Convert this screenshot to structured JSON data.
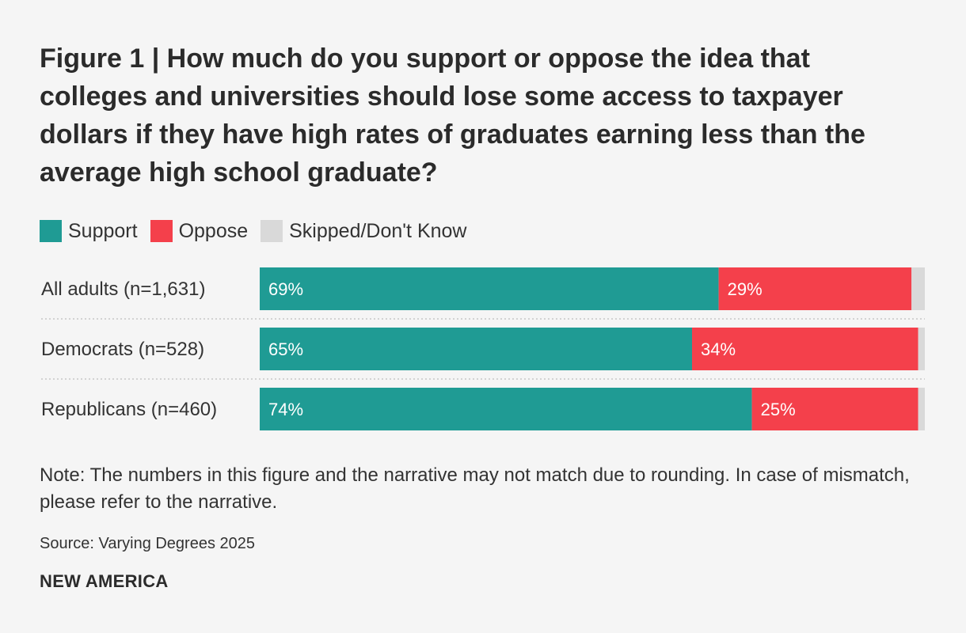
{
  "chart_data": {
    "type": "bar",
    "orientation": "horizontal",
    "stacked": true,
    "title": "Figure 1 | How much do you support or oppose the idea that colleges and universities should lose some access to taxpayer dollars if they have high rates of graduates earning less than the average high school graduate?",
    "categories": [
      "All adults (n=1,631)",
      "Democrats (n=528)",
      "Republicans (n=460)"
    ],
    "series": [
      {
        "name": "Support",
        "color": "#1f9b94",
        "values": [
          69,
          65,
          74
        ],
        "labels": [
          "69%",
          "65%",
          "74%"
        ]
      },
      {
        "name": "Oppose",
        "color": "#f4404b",
        "values": [
          29,
          34,
          25
        ],
        "labels": [
          "29%",
          "34%",
          "25%"
        ]
      },
      {
        "name": "Skipped/Don't Know",
        "color": "#d9d9d9",
        "values": [
          2,
          1,
          1
        ],
        "labels": [
          "",
          "",
          ""
        ]
      }
    ],
    "xlim": [
      0,
      100
    ],
    "legend": "top-left",
    "grid": false
  },
  "note": "Note: The numbers in this figure and the narrative may not match due to rounding. In case of mismatch, please refer to the narrative.",
  "source": "Source: Varying Degrees 2025",
  "brand": "NEW AMERICA"
}
